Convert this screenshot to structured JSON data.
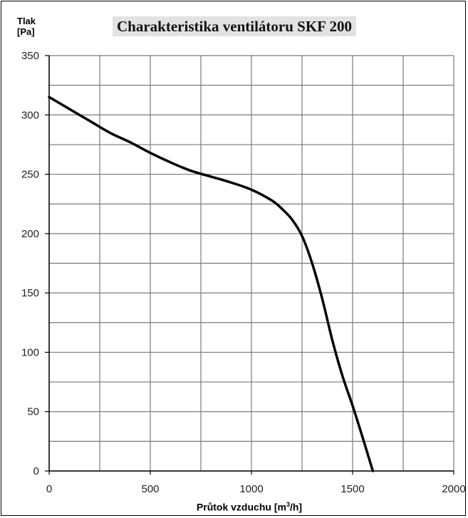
{
  "chart_data": {
    "type": "line",
    "title": "Charakteristika ventilátoru SKF 200",
    "ylabel_line1": "Tlak",
    "ylabel_line2": "[Pa]",
    "xlabel_prefix": "Průtok vzduchu [m",
    "xlabel_sup": "3",
    "xlabel_suffix": "/h]",
    "xlim": [
      0,
      2000
    ],
    "ylim": [
      0,
      350
    ],
    "xticks": [
      0,
      500,
      1000,
      1500,
      2000
    ],
    "yticks": [
      0,
      50,
      100,
      150,
      200,
      250,
      300,
      350
    ],
    "grid": true,
    "series": [
      {
        "x": [
          0,
          100,
          200,
          300,
          400,
          500,
          600,
          700,
          800,
          900,
          1000,
          1100,
          1150,
          1200,
          1250,
          1300,
          1350,
          1400,
          1450,
          1500,
          1550,
          1600
        ],
        "y": [
          315,
          305,
          295,
          285,
          277,
          268,
          260,
          253,
          248,
          243,
          237,
          228,
          221,
          212,
          198,
          175,
          145,
          110,
          80,
          55,
          28,
          0
        ],
        "color": "#000000"
      }
    ]
  }
}
